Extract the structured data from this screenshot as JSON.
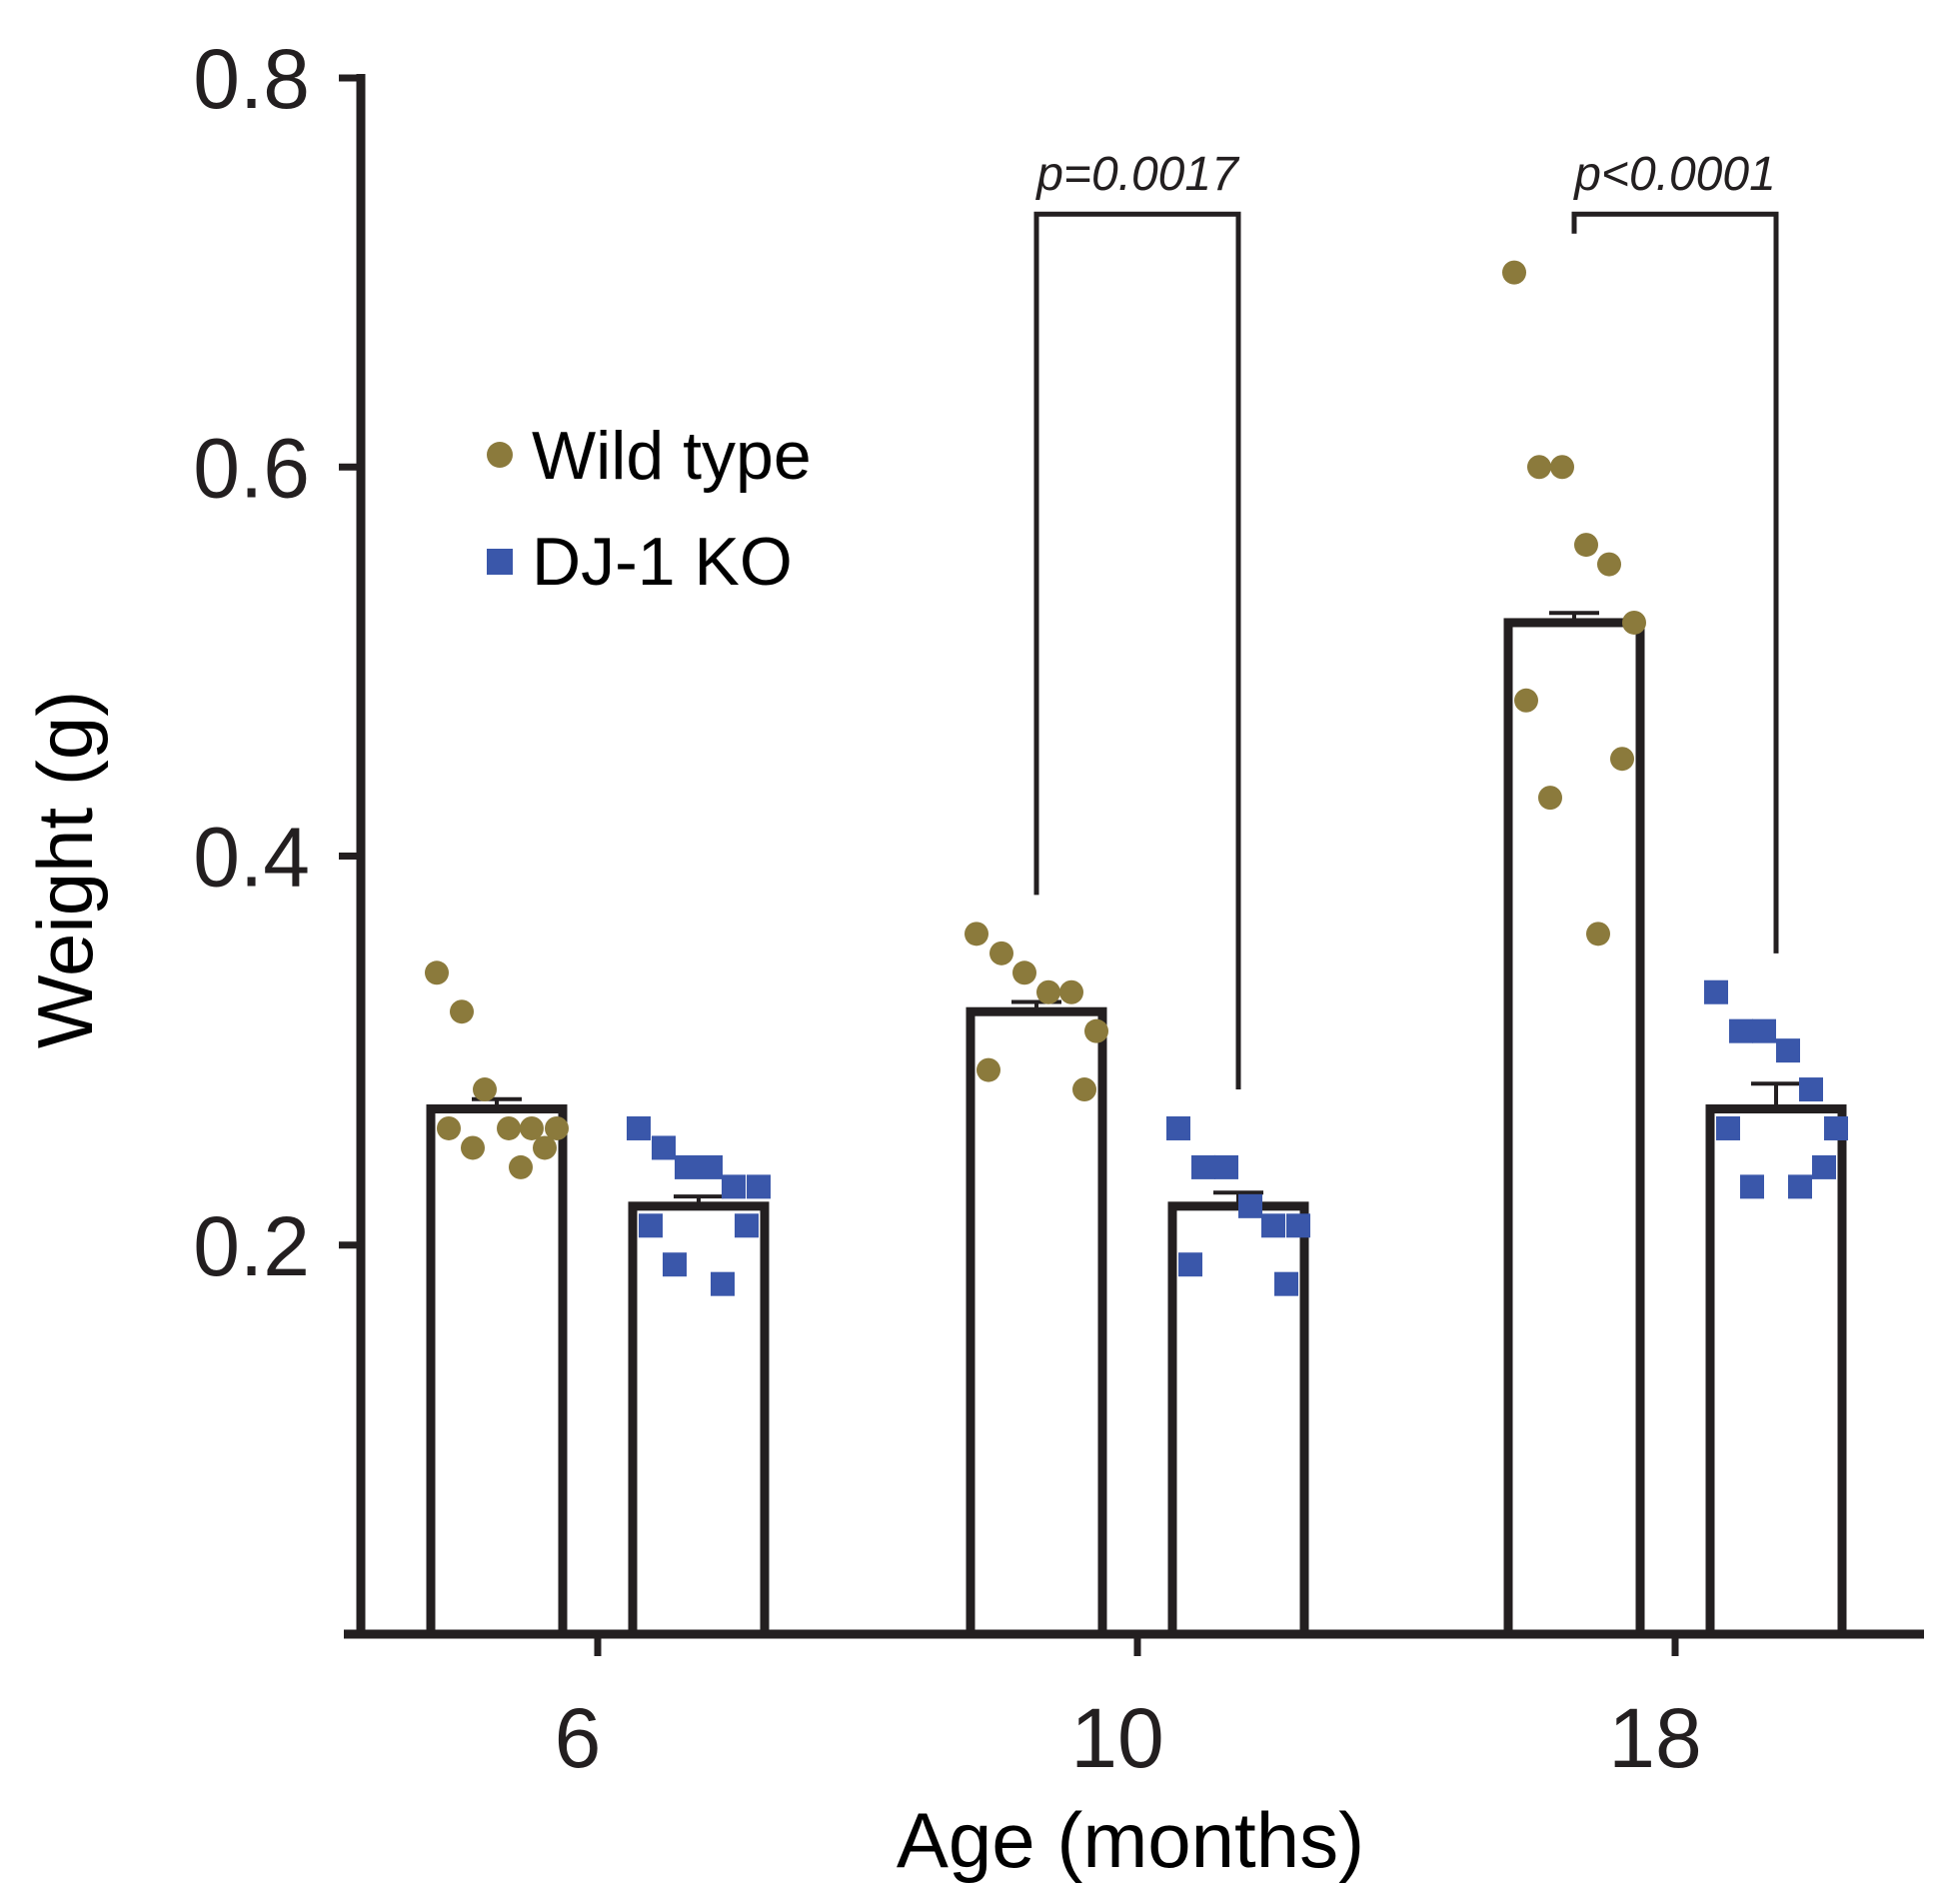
{
  "chart_data": {
    "type": "bar",
    "xlabel": "Age (months)",
    "ylabel": "Weight (g)",
    "ylim": [
      0,
      0.8
    ],
    "yticks": [
      0.2,
      0.4,
      0.6,
      0.8
    ],
    "ytick_labels": [
      "0.2",
      "0.4",
      "0.6",
      "0.8"
    ],
    "categories": [
      "6",
      "10",
      "18"
    ],
    "legend": {
      "position": "upper-left"
    },
    "series": [
      {
        "name": "Wild type",
        "marker": "circle",
        "color": "#8b7a3c",
        "values": [
          0.27,
          0.32,
          0.52
        ],
        "errors": [
          0.005,
          0.005,
          0.005
        ],
        "points": [
          [
            0.34,
            0.32,
            0.28,
            0.26,
            0.26,
            0.26,
            0.26,
            0.25,
            0.25,
            0.24
          ],
          [
            0.36,
            0.35,
            0.34,
            0.33,
            0.33,
            0.31,
            0.29,
            0.28
          ],
          [
            0.7,
            0.6,
            0.6,
            0.56,
            0.55,
            0.52,
            0.48,
            0.45,
            0.43,
            0.36
          ]
        ]
      },
      {
        "name": "DJ-1 KO",
        "marker": "square",
        "color": "#3a57aa",
        "values": [
          0.22,
          0.22,
          0.27
        ],
        "errors": [
          0.005,
          0.007,
          0.013
        ],
        "points": [
          [
            0.26,
            0.25,
            0.24,
            0.24,
            0.23,
            0.23,
            0.21,
            0.21,
            0.19,
            0.18
          ],
          [
            0.26,
            0.24,
            0.24,
            0.22,
            0.21,
            0.21,
            0.19,
            0.18
          ],
          [
            0.33,
            0.31,
            0.31,
            0.3,
            0.28,
            0.26,
            0.26,
            0.24,
            0.23,
            0.23
          ]
        ]
      }
    ],
    "annotations": [
      {
        "group": 1,
        "text": "p=0.0017",
        "bracket_top": 0.73,
        "left_end": 0.38,
        "right_end": 0.28
      },
      {
        "group": 2,
        "text": "p<0.0001",
        "bracket_top": 0.73,
        "left_end": 0.72,
        "right_end": 0.35
      }
    ]
  }
}
